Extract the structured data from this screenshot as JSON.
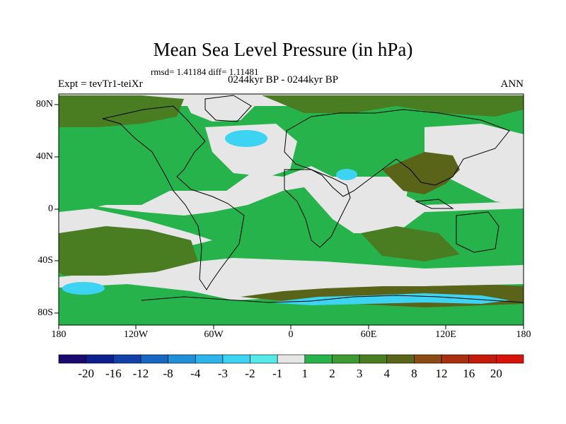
{
  "title": "Mean Sea Level Pressure (in hPa)",
  "stats": "rmsd= 1.41184 diff= 1.11481",
  "subtitle": "0244kyr BP - 0244kyr BP",
  "experiment": "Expt = tevTr1-teiXr",
  "season": "ANN",
  "lat_labels": [
    "80N",
    "40N",
    "0",
    "40S",
    "80S"
  ],
  "lon_labels": [
    "180",
    "120W",
    "60W",
    "0",
    "60E",
    "120E",
    "180"
  ],
  "colorbar": {
    "labels": [
      "-20",
      "-16",
      "-12",
      "-8",
      "-4",
      "-3",
      "-2",
      "-1",
      "1",
      "2",
      "3",
      "4",
      "8",
      "12",
      "16",
      "20"
    ],
    "colors": [
      "#1a0a6e",
      "#0c1f8c",
      "#1140a8",
      "#1767c2",
      "#1f8fd8",
      "#2db4ea",
      "#3dd3f2",
      "#55eae8",
      "#e6e6e6",
      "#27b34c",
      "#3e9a32",
      "#4a7d22",
      "#5a6418",
      "#8a4a12",
      "#a9300e",
      "#c41a0a",
      "#d9120a"
    ]
  },
  "palette": {
    "neutral": "#e6e6e6",
    "green": "#27b34c",
    "dark_green": "#3e9a32",
    "olive": "#4a7d22",
    "brown": "#5a6418",
    "cyan": "#3dd3f2"
  }
}
